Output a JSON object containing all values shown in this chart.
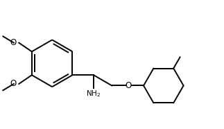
{
  "bg_color": "#ffffff",
  "line_color": "#000000",
  "line_width": 1.4,
  "font_size": 7.5,
  "figsize": [
    3.23,
    1.86
  ],
  "dpi": 100,
  "xlim": [
    0.0,
    9.5
  ],
  "ylim": [
    0.2,
    5.5
  ]
}
